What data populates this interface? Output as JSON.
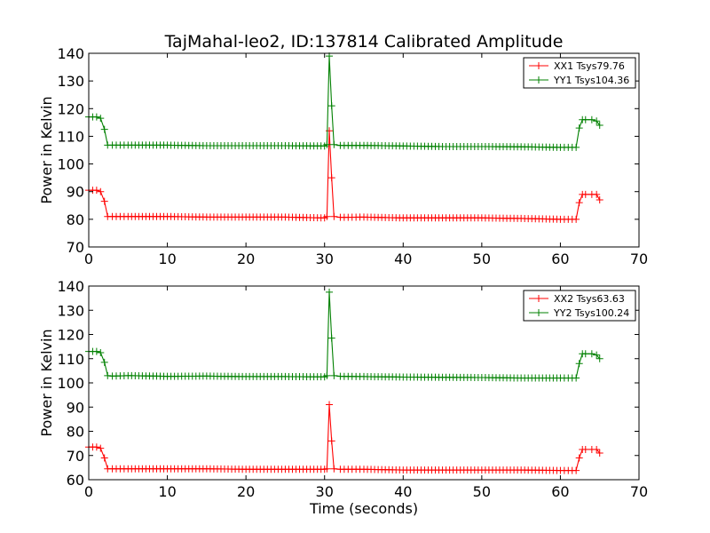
{
  "figure_title": "TajMahal-leo2, ID:137814 Calibrated Amplitude",
  "chart_data": [
    {
      "type": "line",
      "title": "TajMahal-leo2, ID:137814 Calibrated Amplitude",
      "xlabel": "",
      "ylabel": "Power in Kelvin",
      "xlim": [
        0,
        70
      ],
      "ylim": [
        70,
        140
      ],
      "xticks": [
        0,
        10,
        20,
        30,
        40,
        50,
        60,
        70
      ],
      "yticks": [
        70,
        80,
        90,
        100,
        110,
        120,
        130,
        140
      ],
      "grid": false,
      "legend_position": "top-right",
      "marker": "+",
      "series": [
        {
          "name": "XX1 Tsys79.76",
          "color": "#ff0000",
          "x": [
            0.0,
            0.5,
            1.0,
            1.5,
            2.0,
            2.4,
            3.0,
            5.0,
            10.0,
            15.0,
            20.0,
            25.0,
            30.0,
            30.3,
            30.6,
            30.9,
            31.2,
            32.0,
            35.0,
            40.0,
            45.0,
            50.0,
            55.0,
            60.0,
            62.0,
            62.4,
            62.8,
            63.2,
            64.0,
            64.6,
            65.0
          ],
          "values": [
            90.5,
            90.5,
            90.5,
            90.0,
            86.5,
            81.0,
            81.0,
            81.0,
            81.0,
            80.8,
            80.8,
            80.8,
            80.5,
            81.0,
            112.0,
            95.0,
            81.0,
            80.7,
            80.8,
            80.5,
            80.5,
            80.5,
            80.3,
            80.0,
            80.0,
            86.0,
            89.0,
            89.0,
            89.0,
            89.0,
            87.0
          ]
        },
        {
          "name": "YY1 Tsys104.36",
          "color": "#008000",
          "x": [
            0.0,
            0.5,
            1.0,
            1.5,
            2.0,
            2.4,
            3.0,
            5.0,
            10.0,
            15.0,
            20.0,
            25.0,
            30.0,
            30.3,
            30.6,
            30.9,
            31.2,
            32.0,
            35.0,
            40.0,
            45.0,
            50.0,
            55.0,
            60.0,
            62.0,
            62.4,
            62.8,
            63.2,
            64.0,
            64.6,
            65.0
          ],
          "values": [
            117.0,
            117.0,
            117.0,
            116.5,
            112.5,
            106.8,
            106.8,
            106.8,
            106.8,
            106.6,
            106.6,
            106.6,
            106.5,
            107.0,
            139.0,
            121.0,
            107.0,
            106.7,
            106.7,
            106.5,
            106.3,
            106.3,
            106.2,
            106.0,
            106.0,
            113.0,
            116.0,
            116.0,
            116.0,
            115.5,
            114.0
          ]
        }
      ]
    },
    {
      "type": "line",
      "title": "",
      "xlabel": "Time (seconds)",
      "ylabel": "Power in Kelvin",
      "xlim": [
        0,
        70
      ],
      "ylim": [
        60,
        140
      ],
      "xticks": [
        0,
        10,
        20,
        30,
        40,
        50,
        60,
        70
      ],
      "yticks": [
        60,
        70,
        80,
        90,
        100,
        110,
        120,
        130,
        140
      ],
      "grid": false,
      "legend_position": "top-right",
      "marker": "+",
      "series": [
        {
          "name": "XX2 Tsys63.63",
          "color": "#ff0000",
          "x": [
            0.0,
            0.5,
            1.0,
            1.5,
            2.0,
            2.4,
            3.0,
            5.0,
            10.0,
            15.0,
            20.0,
            25.0,
            30.0,
            30.3,
            30.6,
            30.9,
            31.2,
            32.0,
            35.0,
            40.0,
            45.0,
            50.0,
            55.0,
            60.0,
            62.0,
            62.4,
            62.8,
            63.2,
            64.0,
            64.6,
            65.0
          ],
          "values": [
            73.5,
            73.5,
            73.5,
            73.0,
            69.0,
            64.5,
            64.5,
            64.5,
            64.5,
            64.5,
            64.3,
            64.3,
            64.3,
            64.5,
            91.0,
            76.0,
            64.5,
            64.3,
            64.3,
            64.0,
            64.0,
            64.0,
            64.0,
            63.8,
            63.8,
            69.0,
            72.5,
            72.5,
            72.5,
            72.5,
            71.0
          ]
        },
        {
          "name": "YY2 Tsys100.24",
          "color": "#008000",
          "x": [
            0.0,
            0.5,
            1.0,
            1.5,
            2.0,
            2.4,
            3.0,
            5.0,
            10.0,
            15.0,
            20.0,
            25.0,
            30.0,
            30.3,
            30.6,
            30.9,
            31.2,
            32.0,
            35.0,
            40.0,
            45.0,
            50.0,
            55.0,
            60.0,
            62.0,
            62.4,
            62.8,
            63.2,
            64.0,
            64.6,
            65.0
          ],
          "values": [
            113.0,
            113.0,
            113.0,
            112.5,
            108.5,
            103.0,
            102.8,
            103.0,
            102.7,
            102.8,
            102.6,
            102.6,
            102.5,
            103.0,
            137.5,
            118.5,
            103.0,
            102.7,
            102.6,
            102.4,
            102.3,
            102.2,
            102.0,
            102.0,
            102.0,
            108.0,
            112.0,
            112.0,
            112.0,
            111.5,
            110.0
          ]
        }
      ]
    }
  ]
}
